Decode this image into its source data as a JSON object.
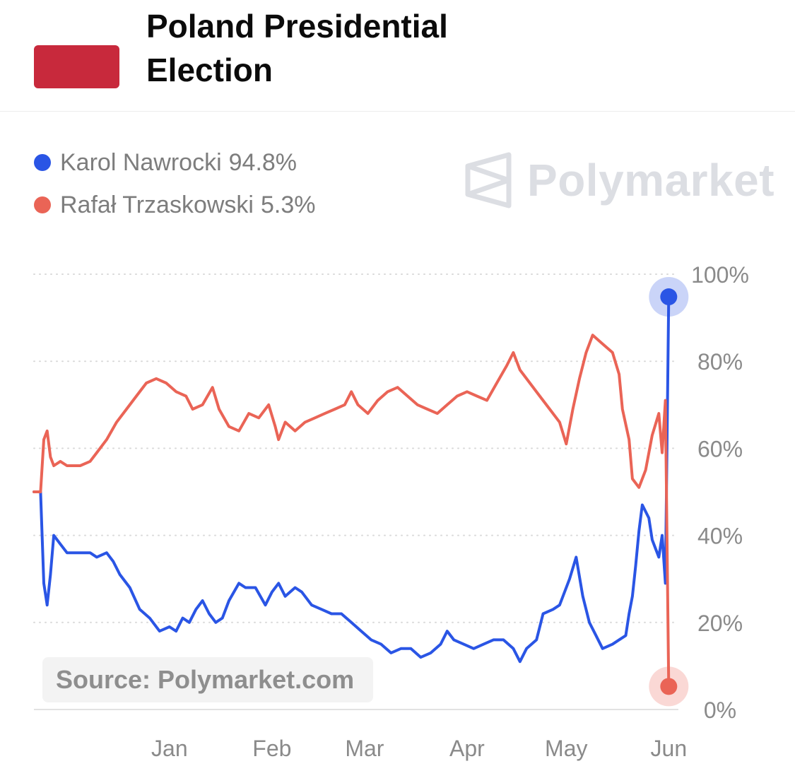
{
  "header": {
    "title": "Poland Presidential Election",
    "flag_colors": [
      "#ffffff",
      "#c8293c"
    ]
  },
  "legend": [
    {
      "name": "Karol Nawrocki",
      "value": "94.8%",
      "color": "#2a55e5"
    },
    {
      "name": "Rafał Trzaskowski",
      "value": "5.3%",
      "color": "#ea6456"
    }
  ],
  "watermark": {
    "text": "Polymarket",
    "icon": "polymarket-logo-icon"
  },
  "source": "Source: Polymarket.com",
  "chart_data": {
    "type": "line",
    "title": "Poland Presidential Election",
    "x_tick_labels": [
      "Jan",
      "Feb",
      "Mar",
      "Apr",
      "May",
      "Jun"
    ],
    "x_tick_dates": [
      "2025-01-01",
      "2025-02-01",
      "2025-03-01",
      "2025-04-01",
      "2025-05-01",
      "2025-06-01"
    ],
    "x_range": [
      "2024-11-21",
      "2025-06-02"
    ],
    "y_tick_labels": [
      "100%",
      "80%",
      "60%",
      "40%",
      "20%",
      "0%"
    ],
    "y_ticks": [
      100,
      80,
      60,
      40,
      20,
      0
    ],
    "ylim": [
      0,
      100
    ],
    "grid": "horizontal-dotted",
    "y_axis_side": "right",
    "series": [
      {
        "name": "Karol Nawrocki",
        "color": "#2a55e5",
        "last_value": 94.8,
        "points": [
          [
            "2024-11-21",
            50
          ],
          [
            "2024-11-23",
            50
          ],
          [
            "2024-11-24",
            29
          ],
          [
            "2024-11-25",
            24
          ],
          [
            "2024-11-26",
            31
          ],
          [
            "2024-11-27",
            40
          ],
          [
            "2024-11-29",
            38
          ],
          [
            "2024-12-01",
            36
          ],
          [
            "2024-12-05",
            36
          ],
          [
            "2024-12-08",
            36
          ],
          [
            "2024-12-10",
            35
          ],
          [
            "2024-12-13",
            36
          ],
          [
            "2024-12-15",
            34
          ],
          [
            "2024-12-17",
            31
          ],
          [
            "2024-12-20",
            28
          ],
          [
            "2024-12-23",
            23
          ],
          [
            "2024-12-26",
            21
          ],
          [
            "2024-12-29",
            18
          ],
          [
            "2025-01-01",
            19
          ],
          [
            "2025-01-03",
            18
          ],
          [
            "2025-01-05",
            21
          ],
          [
            "2025-01-07",
            20
          ],
          [
            "2025-01-09",
            23
          ],
          [
            "2025-01-11",
            25
          ],
          [
            "2025-01-13",
            22
          ],
          [
            "2025-01-15",
            20
          ],
          [
            "2025-01-17",
            21
          ],
          [
            "2025-01-19",
            25
          ],
          [
            "2025-01-22",
            29
          ],
          [
            "2025-01-24",
            28
          ],
          [
            "2025-01-27",
            28
          ],
          [
            "2025-01-30",
            24
          ],
          [
            "2025-02-01",
            27
          ],
          [
            "2025-02-03",
            29
          ],
          [
            "2025-02-05",
            26
          ],
          [
            "2025-02-08",
            28
          ],
          [
            "2025-02-10",
            27
          ],
          [
            "2025-02-13",
            24
          ],
          [
            "2025-02-16",
            23
          ],
          [
            "2025-02-19",
            22
          ],
          [
            "2025-02-22",
            22
          ],
          [
            "2025-02-25",
            20
          ],
          [
            "2025-02-28",
            18
          ],
          [
            "2025-03-03",
            16
          ],
          [
            "2025-03-06",
            15
          ],
          [
            "2025-03-09",
            13
          ],
          [
            "2025-03-12",
            14
          ],
          [
            "2025-03-15",
            14
          ],
          [
            "2025-03-18",
            12
          ],
          [
            "2025-03-21",
            13
          ],
          [
            "2025-03-24",
            15
          ],
          [
            "2025-03-26",
            18
          ],
          [
            "2025-03-28",
            16
          ],
          [
            "2025-03-31",
            15
          ],
          [
            "2025-04-03",
            14
          ],
          [
            "2025-04-06",
            15
          ],
          [
            "2025-04-09",
            16
          ],
          [
            "2025-04-12",
            16
          ],
          [
            "2025-04-15",
            14
          ],
          [
            "2025-04-17",
            11
          ],
          [
            "2025-04-19",
            14
          ],
          [
            "2025-04-22",
            16
          ],
          [
            "2025-04-24",
            22
          ],
          [
            "2025-04-27",
            23
          ],
          [
            "2025-04-29",
            24
          ],
          [
            "2025-05-02",
            30
          ],
          [
            "2025-05-04",
            35
          ],
          [
            "2025-05-06",
            26
          ],
          [
            "2025-05-08",
            20
          ],
          [
            "2025-05-10",
            17
          ],
          [
            "2025-05-12",
            14
          ],
          [
            "2025-05-15",
            15
          ],
          [
            "2025-05-17",
            16
          ],
          [
            "2025-05-19",
            17
          ],
          [
            "2025-05-20",
            22
          ],
          [
            "2025-05-21",
            26
          ],
          [
            "2025-05-22",
            33
          ],
          [
            "2025-05-23",
            41
          ],
          [
            "2025-05-24",
            47
          ],
          [
            "2025-05-26",
            44
          ],
          [
            "2025-05-27",
            39
          ],
          [
            "2025-05-28",
            37
          ],
          [
            "2025-05-29",
            35
          ],
          [
            "2025-05-30",
            40
          ],
          [
            "2025-05-31",
            29
          ],
          [
            "2025-06-01",
            94.8
          ]
        ]
      },
      {
        "name": "Rafał Trzaskowski",
        "color": "#ea6456",
        "last_value": 5.3,
        "points": [
          [
            "2024-11-21",
            50
          ],
          [
            "2024-11-23",
            50
          ],
          [
            "2024-11-24",
            62
          ],
          [
            "2024-11-25",
            64
          ],
          [
            "2024-11-26",
            58
          ],
          [
            "2024-11-27",
            56
          ],
          [
            "2024-11-29",
            57
          ],
          [
            "2024-12-01",
            56
          ],
          [
            "2024-12-05",
            56
          ],
          [
            "2024-12-08",
            57
          ],
          [
            "2024-12-10",
            59
          ],
          [
            "2024-12-13",
            62
          ],
          [
            "2024-12-16",
            66
          ],
          [
            "2024-12-19",
            69
          ],
          [
            "2024-12-22",
            72
          ],
          [
            "2024-12-25",
            75
          ],
          [
            "2024-12-28",
            76
          ],
          [
            "2024-12-31",
            75
          ],
          [
            "2025-01-03",
            73
          ],
          [
            "2025-01-06",
            72
          ],
          [
            "2025-01-08",
            69
          ],
          [
            "2025-01-11",
            70
          ],
          [
            "2025-01-14",
            74
          ],
          [
            "2025-01-16",
            69
          ],
          [
            "2025-01-19",
            65
          ],
          [
            "2025-01-22",
            64
          ],
          [
            "2025-01-25",
            68
          ],
          [
            "2025-01-28",
            67
          ],
          [
            "2025-01-31",
            70
          ],
          [
            "2025-02-02",
            65
          ],
          [
            "2025-02-03",
            62
          ],
          [
            "2025-02-05",
            66
          ],
          [
            "2025-02-08",
            64
          ],
          [
            "2025-02-11",
            66
          ],
          [
            "2025-02-14",
            67
          ],
          [
            "2025-02-17",
            68
          ],
          [
            "2025-02-20",
            69
          ],
          [
            "2025-02-23",
            70
          ],
          [
            "2025-02-25",
            73
          ],
          [
            "2025-02-27",
            70
          ],
          [
            "2025-03-02",
            68
          ],
          [
            "2025-03-05",
            71
          ],
          [
            "2025-03-08",
            73
          ],
          [
            "2025-03-11",
            74
          ],
          [
            "2025-03-14",
            72
          ],
          [
            "2025-03-17",
            70
          ],
          [
            "2025-03-20",
            69
          ],
          [
            "2025-03-23",
            68
          ],
          [
            "2025-03-26",
            70
          ],
          [
            "2025-03-29",
            72
          ],
          [
            "2025-04-01",
            73
          ],
          [
            "2025-04-04",
            72
          ],
          [
            "2025-04-07",
            71
          ],
          [
            "2025-04-10",
            75
          ],
          [
            "2025-04-13",
            79
          ],
          [
            "2025-04-15",
            82
          ],
          [
            "2025-04-17",
            78
          ],
          [
            "2025-04-20",
            75
          ],
          [
            "2025-04-23",
            72
          ],
          [
            "2025-04-26",
            69
          ],
          [
            "2025-04-29",
            66
          ],
          [
            "2025-05-01",
            61
          ],
          [
            "2025-05-03",
            69
          ],
          [
            "2025-05-05",
            76
          ],
          [
            "2025-05-07",
            82
          ],
          [
            "2025-05-09",
            86
          ],
          [
            "2025-05-12",
            84
          ],
          [
            "2025-05-15",
            82
          ],
          [
            "2025-05-17",
            77
          ],
          [
            "2025-05-18",
            69
          ],
          [
            "2025-05-20",
            62
          ],
          [
            "2025-05-21",
            53
          ],
          [
            "2025-05-23",
            51
          ],
          [
            "2025-05-25",
            55
          ],
          [
            "2025-05-27",
            63
          ],
          [
            "2025-05-29",
            68
          ],
          [
            "2025-05-30",
            59
          ],
          [
            "2025-05-31",
            71
          ],
          [
            "2025-06-01",
            5.3
          ]
        ]
      }
    ]
  }
}
